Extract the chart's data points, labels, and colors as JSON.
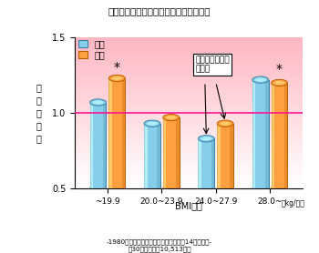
{
  "title": "図　累積年齢調整総死亡率の相対危険度",
  "categories": [
    "~19.9",
    "20.0~23.9",
    "24.0~27.9",
    "28.0~"
  ],
  "xlabel": "BMI区分",
  "xlabel2": "（kg/㎡）",
  "ylabel": "相\n対\n危\n険\n度",
  "footnote1": "-1980年の循環器疾患基礎調査対象者を14年間追跡-",
  "footnote2": "（30歳以上男女10,513名）",
  "male_values": [
    1.07,
    0.93,
    0.83,
    1.22
  ],
  "female_values": [
    1.23,
    0.97,
    0.93,
    1.2
  ],
  "male_color": "#87CEEB",
  "female_color": "#FFA040",
  "male_edge": "#3a80a4",
  "female_edge": "#b86000",
  "reference_line": 1.0,
  "ylim": [
    0.5,
    1.5
  ],
  "yticks": [
    0.5,
    1.0,
    1.5
  ],
  "legend_male": "男性",
  "legend_female": "女性",
  "asterisk_groups": [
    0,
    3
  ],
  "annotation_text": "もっとも死亡率\nが低い"
}
